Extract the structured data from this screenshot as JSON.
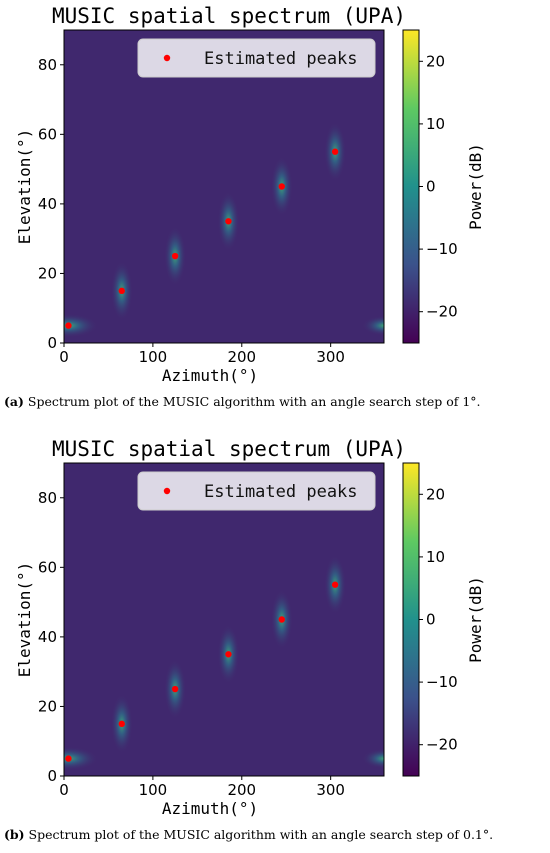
{
  "colormap": [
    "#440154",
    "#3b528b",
    "#21918c",
    "#5ec962",
    "#fde725"
  ],
  "charts": [
    {
      "caption_tag": "(a)",
      "caption_text": " Spectrum plot of the MUSIC algorithm with an angle search step of 1°."
    },
    {
      "caption_tag": "(b)",
      "caption_text": " Spectrum plot of the MUSIC algorithm with an angle search step of 0.1°."
    }
  ],
  "chart_data": [
    {
      "type": "heatmap",
      "title": "MUSIC spatial spectrum (UPA)",
      "xlabel": "Azimuth(°)",
      "ylabel": "Elevation(°)",
      "xlim": [
        0,
        360
      ],
      "ylim": [
        0,
        90
      ],
      "xticks": [
        0,
        100,
        200,
        300
      ],
      "yticks": [
        0,
        20,
        40,
        60,
        80
      ],
      "colorbar_label": "Power(dB)",
      "colorbar_range": [
        -25,
        25
      ],
      "colorbar_ticks": [
        20,
        10,
        0,
        -10,
        -20
      ],
      "colorbar_tick_labels": [
        "20",
        "10",
        "0",
        "−10",
        "−20"
      ],
      "background_level_db": -19,
      "legend": {
        "label": "Estimated peaks",
        "position": "top-right"
      },
      "peaks": [
        {
          "azimuth": 5,
          "elevation": 5
        },
        {
          "azimuth": 65,
          "elevation": 15
        },
        {
          "azimuth": 125,
          "elevation": 25
        },
        {
          "azimuth": 185,
          "elevation": 35
        },
        {
          "azimuth": 245,
          "elevation": 45
        },
        {
          "azimuth": 305,
          "elevation": 55
        }
      ]
    },
    {
      "type": "heatmap",
      "title": "MUSIC spatial spectrum (UPA)",
      "xlabel": "Azimuth(°)",
      "ylabel": "Elevation(°)",
      "xlim": [
        0,
        360
      ],
      "ylim": [
        0,
        90
      ],
      "xticks": [
        0,
        100,
        200,
        300
      ],
      "yticks": [
        0,
        20,
        40,
        60,
        80
      ],
      "colorbar_label": "Power(dB)",
      "colorbar_range": [
        -25,
        25
      ],
      "colorbar_ticks": [
        20,
        10,
        0,
        -10,
        -20
      ],
      "colorbar_tick_labels": [
        "20",
        "10",
        "0",
        "−10",
        "−20"
      ],
      "background_level_db": -19,
      "legend": {
        "label": "Estimated peaks",
        "position": "top-right"
      },
      "peaks": [
        {
          "azimuth": 5,
          "elevation": 5
        },
        {
          "azimuth": 65,
          "elevation": 15
        },
        {
          "azimuth": 125,
          "elevation": 25
        },
        {
          "azimuth": 185,
          "elevation": 35
        },
        {
          "azimuth": 245,
          "elevation": 45
        },
        {
          "azimuth": 305,
          "elevation": 55
        }
      ]
    }
  ]
}
